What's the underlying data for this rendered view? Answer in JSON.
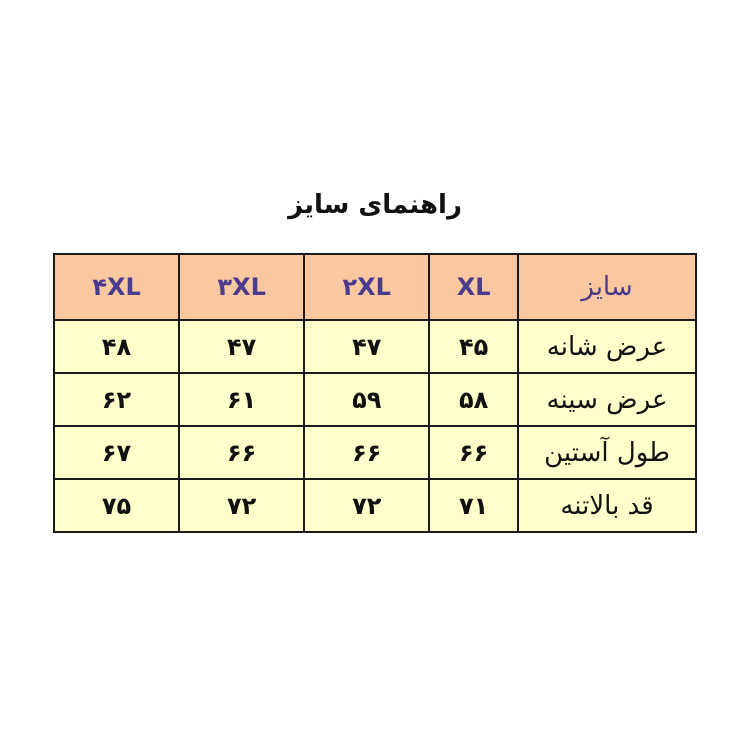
{
  "title": "راهنمای سایز",
  "table": {
    "header": [
      "سایز",
      "XL",
      "۲XL",
      "۳XL",
      "۴XL"
    ],
    "rows": [
      {
        "label": "عرض شانه",
        "values": [
          "۴۵",
          "۴۷",
          "۴۷",
          "۴۸"
        ]
      },
      {
        "label": "عرض سینه",
        "values": [
          "۵۸",
          "۵۹",
          "۶۱",
          "۶۲"
        ]
      },
      {
        "label": "طول آستین",
        "values": [
          "۶۶",
          "۶۶",
          "۶۶",
          "۶۷"
        ]
      },
      {
        "label": "قد بالاتنه",
        "values": [
          "۷۱",
          "۷۲",
          "۷۲",
          "۷۵"
        ]
      }
    ]
  },
  "colors": {
    "header_bg": "#f9c8a0",
    "header_text": "#4b3b8c",
    "body_bg": "#ffffcc",
    "border": "#1a1a1a"
  }
}
